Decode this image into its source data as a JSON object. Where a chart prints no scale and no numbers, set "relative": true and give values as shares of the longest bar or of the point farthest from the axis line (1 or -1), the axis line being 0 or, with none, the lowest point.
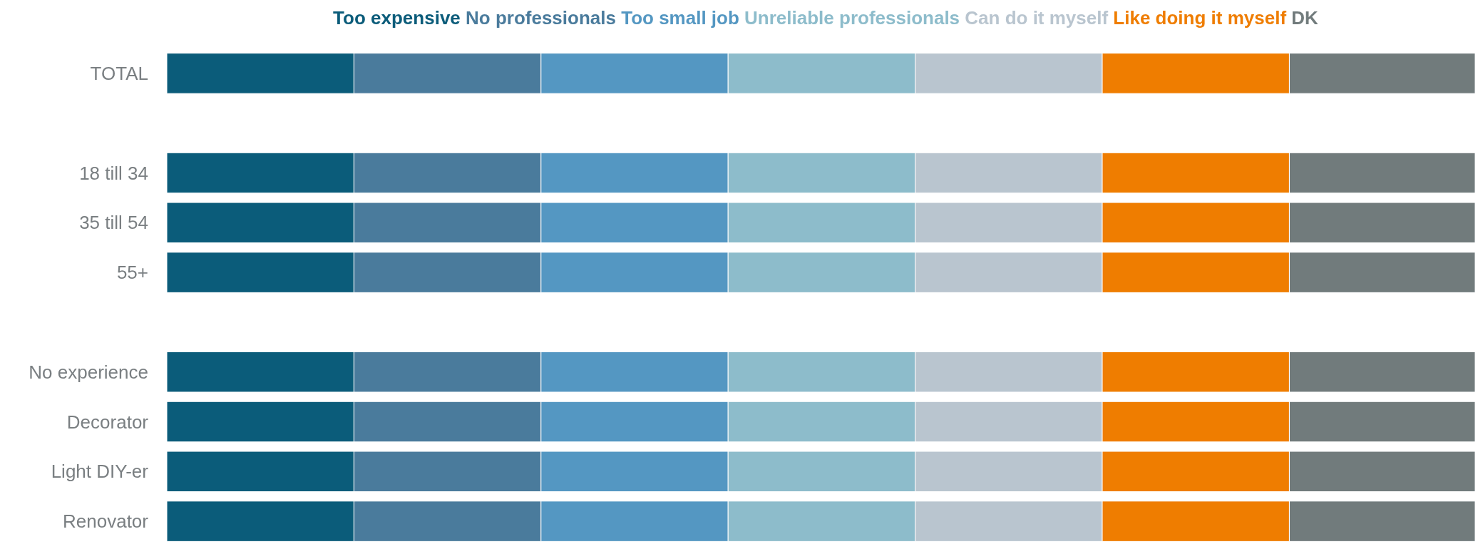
{
  "chart_data": {
    "type": "bar",
    "orientation": "horizontal",
    "stacked": true,
    "relative": true,
    "legend": "top",
    "categories": [
      "TOTAL",
      null,
      "18 till 34",
      "35 till 54",
      "55+",
      null,
      "No experience",
      "Decorator",
      "Light DIY-er",
      "Renovator"
    ],
    "series": [
      {
        "name": "Too expensive",
        "color": "#0b5c7a",
        "values": [
          0.143,
          null,
          0.143,
          0.143,
          0.143,
          null,
          0.143,
          0.143,
          0.143,
          0.143
        ]
      },
      {
        "name": "No professionals",
        "color": "#4a7b9c",
        "values": [
          0.143,
          null,
          0.143,
          0.143,
          0.143,
          null,
          0.143,
          0.143,
          0.143,
          0.143
        ]
      },
      {
        "name": "Too small job",
        "color": "#5497c2",
        "values": [
          0.143,
          null,
          0.143,
          0.143,
          0.143,
          null,
          0.143,
          0.143,
          0.143,
          0.143
        ]
      },
      {
        "name": "Unreliable professionals",
        "color": "#8dbccb",
        "values": [
          0.143,
          null,
          0.143,
          0.143,
          0.143,
          null,
          0.143,
          0.143,
          0.143,
          0.143
        ]
      },
      {
        "name": "Can do it myself",
        "color": "#b9c5cf",
        "values": [
          0.143,
          null,
          0.143,
          0.143,
          0.143,
          null,
          0.143,
          0.143,
          0.143,
          0.143
        ]
      },
      {
        "name": "Like doing it myself",
        "color": "#ef7d00",
        "values": [
          0.143,
          null,
          0.143,
          0.143,
          0.143,
          null,
          0.143,
          0.143,
          0.143,
          0.143
        ]
      },
      {
        "name": "DK",
        "color": "#717b7c",
        "values": [
          0.142,
          null,
          0.142,
          0.142,
          0.142,
          null,
          0.142,
          0.142,
          0.142,
          0.142
        ]
      }
    ]
  }
}
